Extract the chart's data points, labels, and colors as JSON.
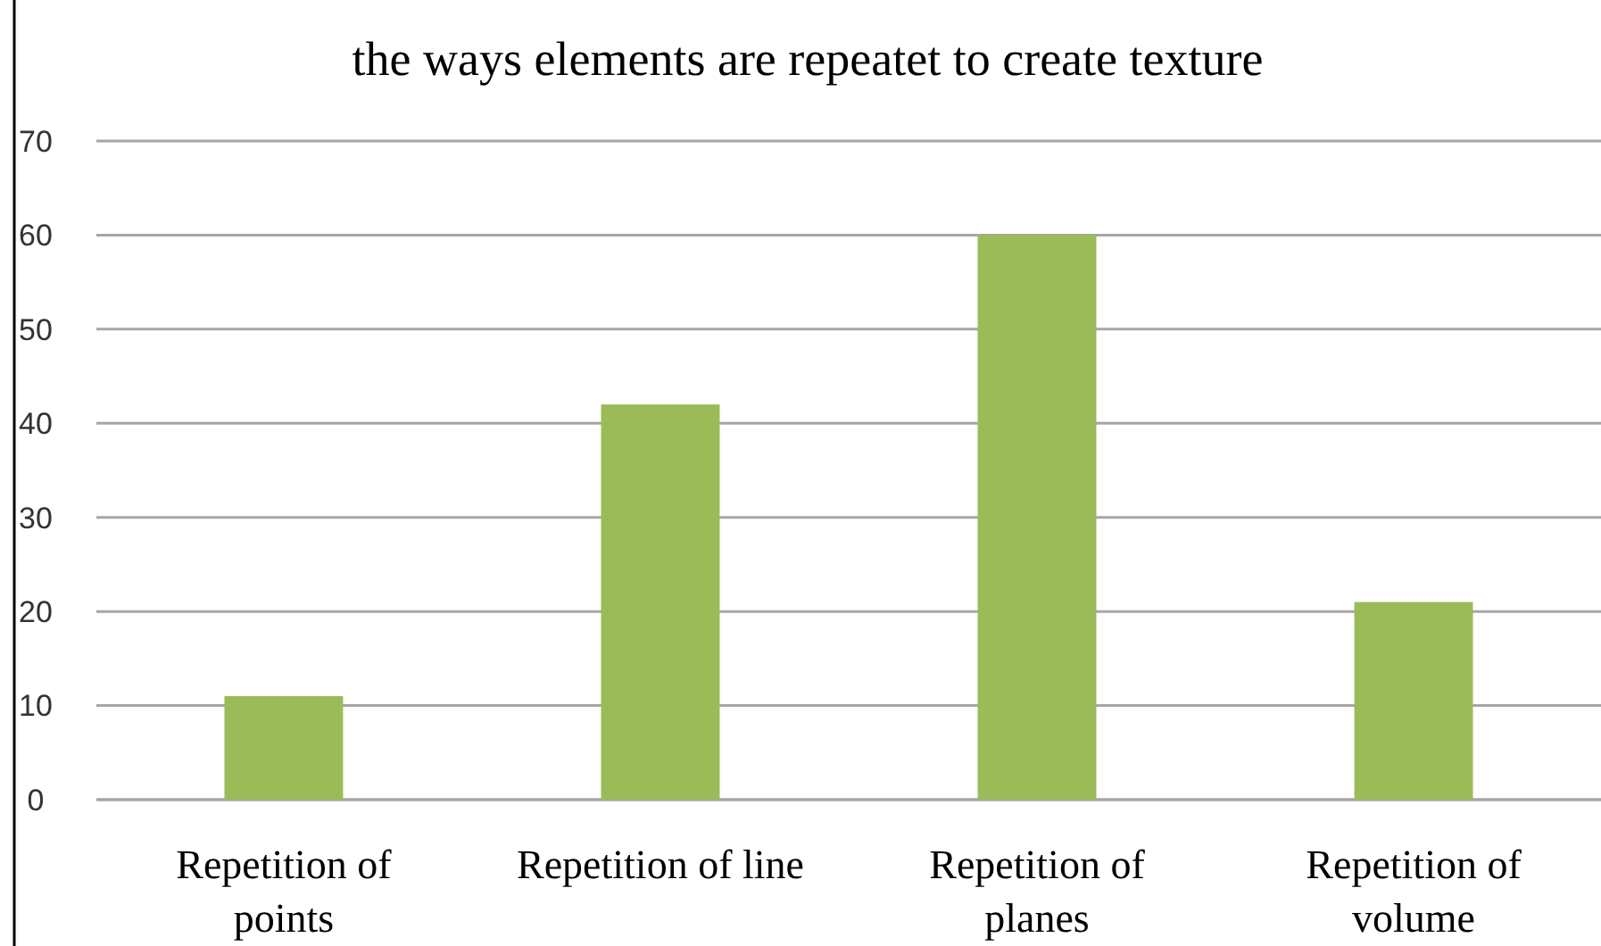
{
  "chart_data": {
    "type": "bar",
    "title": "the ways elements are repeatet to create texture",
    "categories": [
      "Repetition of points",
      "Repetition of line",
      "Repetition of planes",
      "Repetition of volume"
    ],
    "values": [
      11,
      42,
      60,
      21
    ],
    "color": "#9bbb59",
    "ylim": [
      0,
      70
    ],
    "yticks": [
      0,
      10,
      20,
      30,
      40,
      50,
      60,
      70
    ],
    "grid": "y"
  }
}
